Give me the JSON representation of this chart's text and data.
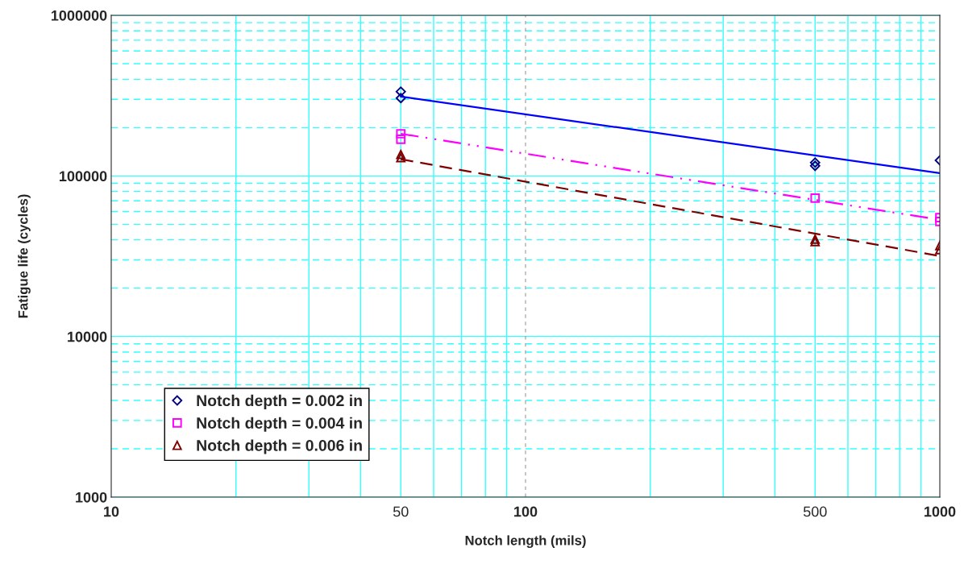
{
  "chart_data": {
    "type": "scatter",
    "xlabel": "Notch length (mils)",
    "ylabel": "Fatigue life (cycles)",
    "log": "xy",
    "xlim": [
      10,
      1000
    ],
    "ylim": [
      1000,
      1000000
    ],
    "xticks": [
      10,
      {
        "value": 20,
        "label": null
      },
      {
        "value": 30,
        "label": null
      },
      {
        "value": 40,
        "label": null
      },
      50,
      {
        "value": 60,
        "label": null
      },
      {
        "value": 70,
        "label": null
      },
      {
        "value": 80,
        "label": null
      },
      {
        "value": 90,
        "label": null
      },
      100,
      {
        "value": 200,
        "label": null
      },
      {
        "value": 300,
        "label": null
      },
      {
        "value": 400,
        "label": null
      },
      500,
      {
        "value": 600,
        "label": null
      },
      {
        "value": 700,
        "label": null
      },
      {
        "value": 800,
        "label": null
      },
      {
        "value": 900,
        "label": null
      },
      1000
    ],
    "yticks": [
      1000,
      {
        "value": 2000,
        "label": null
      },
      {
        "value": 3000,
        "label": null
      },
      {
        "value": 4000,
        "label": null
      },
      {
        "value": 5000,
        "label": null
      },
      {
        "value": 6000,
        "label": null
      },
      {
        "value": 7000,
        "label": null
      },
      {
        "value": 8000,
        "label": null
      },
      {
        "value": 9000,
        "label": null
      },
      10000,
      {
        "value": 20000,
        "label": null
      },
      {
        "value": 30000,
        "label": null
      },
      {
        "value": 40000,
        "label": null
      },
      {
        "value": 50000,
        "label": null
      },
      {
        "value": 60000,
        "label": null
      },
      {
        "value": 70000,
        "label": null
      },
      {
        "value": 80000,
        "label": null
      },
      {
        "value": 90000,
        "label": null
      },
      100000,
      {
        "value": 200000,
        "label": null
      },
      {
        "value": 300000,
        "label": null
      },
      {
        "value": 400000,
        "label": null
      },
      {
        "value": 500000,
        "label": null
      },
      {
        "value": 600000,
        "label": null
      },
      {
        "value": 700000,
        "label": null
      },
      {
        "value": 800000,
        "label": null
      },
      {
        "value": 900000,
        "label": null
      },
      1000000
    ],
    "grid": true,
    "legend": "bottom left",
    "ref_lines": [
      {
        "axis": "x",
        "value": 100,
        "color": "#999999",
        "line_style": "dashed"
      }
    ],
    "series": [
      {
        "name": "Notch depth = 0.002 in",
        "marker": "diamond",
        "color": "#000080",
        "x": [
          50,
          50,
          500,
          500,
          1000
        ],
        "values": [
          335000,
          305000,
          121000,
          115500,
          125000
        ]
      },
      {
        "name": "Notch depth = 0.004 in",
        "marker": "square",
        "color": "#ff00ff",
        "x": [
          50,
          50,
          500,
          1000,
          1000
        ],
        "values": [
          183000,
          169000,
          72800,
          55000,
          52000
        ]
      },
      {
        "name": "Notch depth = 0.006 in",
        "marker": "triangle",
        "color": "#800000",
        "x": [
          50,
          50,
          500,
          500,
          1000,
          1000
        ],
        "values": [
          136000,
          130000,
          40400,
          39000,
          36800,
          34700
        ]
      },
      {
        "type": "line",
        "line_style": "solid",
        "color": "#0000ff",
        "x": [
          50,
          1000
        ],
        "values": [
          312000,
          104000
        ]
      },
      {
        "type": "line",
        "line_style": "dashdot",
        "color": "#ff00ff",
        "x": [
          50,
          1000
        ],
        "values": [
          183000,
          53300
        ]
      },
      {
        "type": "line",
        "line_style": "dashed",
        "color": "#800000",
        "x": [
          50,
          1000
        ],
        "values": [
          127000,
          31700
        ]
      }
    ]
  }
}
